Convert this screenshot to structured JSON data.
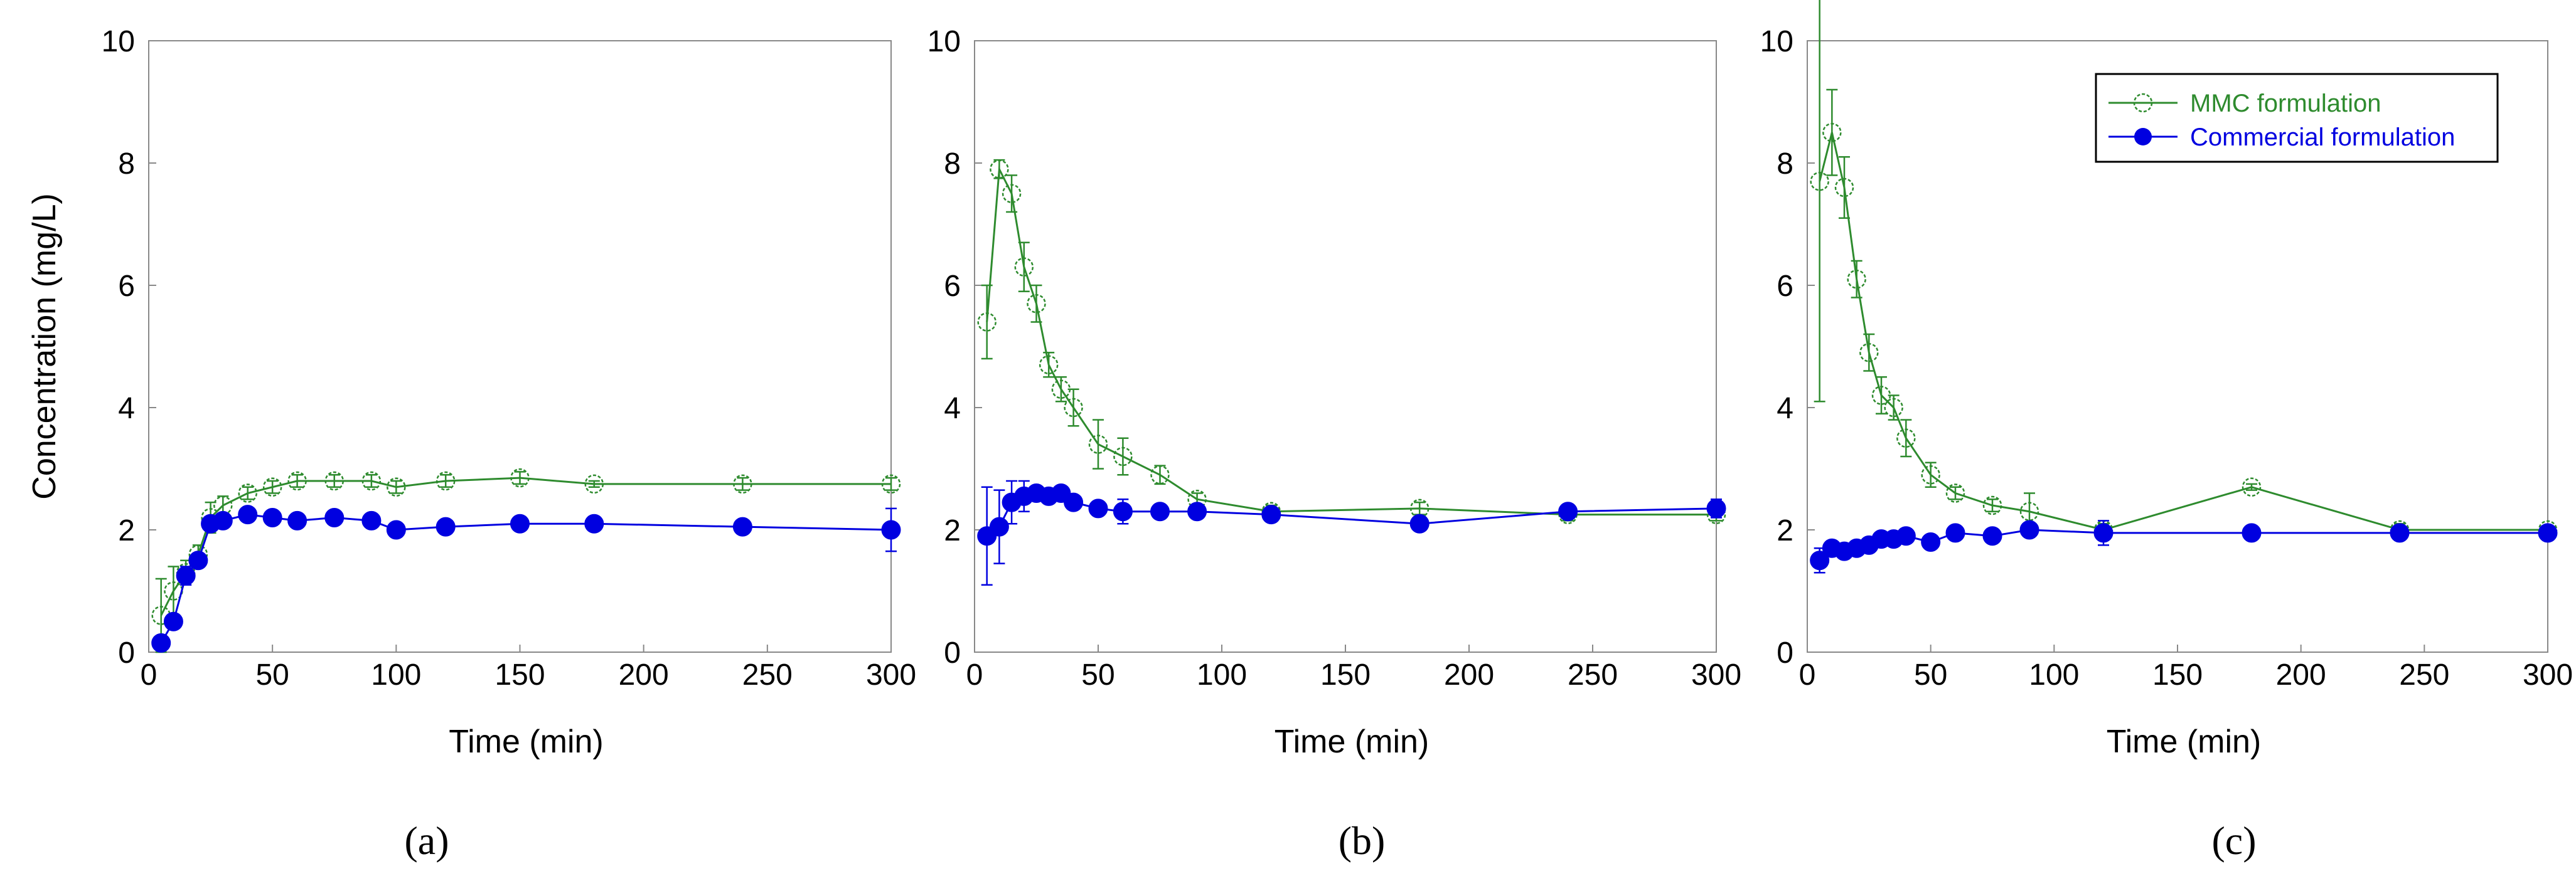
{
  "chart_data": [
    {
      "type": "line",
      "panel_label": "(a)",
      "xlabel": "Time (min)",
      "ylabel": "Concentration (mg/L)",
      "xlim": [
        0,
        300
      ],
      "ylim": [
        0,
        10
      ],
      "xticks": [
        "0",
        "50",
        "100",
        "150",
        "200",
        "250",
        "300"
      ],
      "yticks": [
        "0",
        "2",
        "4",
        "6",
        "8",
        "10"
      ],
      "legend": false,
      "series": [
        {
          "name": "MMC formulation",
          "color": "#2e8b2e",
          "marker": "open-circle",
          "x": [
            5,
            10,
            15,
            20,
            25,
            30,
            40,
            50,
            60,
            75,
            90,
            100,
            120,
            150,
            180,
            240,
            300
          ],
          "y": [
            0.6,
            1.0,
            1.3,
            1.6,
            2.2,
            2.4,
            2.6,
            2.7,
            2.8,
            2.8,
            2.8,
            2.7,
            2.8,
            2.85,
            2.75,
            2.75,
            2.75
          ],
          "err": [
            0.6,
            0.4,
            0.2,
            0.15,
            0.25,
            0.15,
            0.1,
            0.1,
            0.1,
            0.1,
            0.1,
            0.1,
            0.1,
            0.1,
            0.05,
            0.1,
            0.1
          ]
        },
        {
          "name": "Commercial formulation",
          "color": "#0000e0",
          "marker": "filled-circle",
          "x": [
            5,
            10,
            15,
            20,
            25,
            30,
            40,
            50,
            60,
            75,
            90,
            100,
            120,
            150,
            180,
            240,
            300
          ],
          "y": [
            0.15,
            0.5,
            1.25,
            1.5,
            2.1,
            2.15,
            2.25,
            2.2,
            2.15,
            2.2,
            2.15,
            2.0,
            2.05,
            2.1,
            2.1,
            2.05,
            2.0
          ],
          "err": [
            0.1,
            0.1,
            0.15,
            0.1,
            0.1,
            0.1,
            0.1,
            0.1,
            0.1,
            0.1,
            0.1,
            0.1,
            0.1,
            0.05,
            0.05,
            0.1,
            0.35
          ]
        }
      ]
    },
    {
      "type": "line",
      "panel_label": "(b)",
      "xlabel": "Time (min)",
      "ylabel": "",
      "xlim": [
        0,
        300
      ],
      "ylim": [
        0,
        10
      ],
      "xticks": [
        "0",
        "50",
        "100",
        "150",
        "200",
        "250",
        "300"
      ],
      "yticks": [
        "0",
        "2",
        "4",
        "6",
        "8",
        "10"
      ],
      "legend": false,
      "series": [
        {
          "name": "MMC formulation",
          "color": "#2e8b2e",
          "marker": "open-circle",
          "x": [
            5,
            10,
            15,
            20,
            25,
            30,
            35,
            40,
            50,
            60,
            75,
            90,
            120,
            180,
            240,
            300
          ],
          "y": [
            5.4,
            7.9,
            7.5,
            6.3,
            5.7,
            4.7,
            4.3,
            4.0,
            3.4,
            3.2,
            2.9,
            2.5,
            2.3,
            2.35,
            2.25,
            2.25
          ],
          "err": [
            0.6,
            0.15,
            0.3,
            0.4,
            0.3,
            0.2,
            0.2,
            0.3,
            0.4,
            0.3,
            0.15,
            0.1,
            0.1,
            0.1,
            0.1,
            0.1
          ]
        },
        {
          "name": "Commercial formulation",
          "color": "#0000e0",
          "marker": "filled-circle",
          "x": [
            5,
            10,
            15,
            20,
            25,
            30,
            35,
            40,
            50,
            60,
            75,
            90,
            120,
            180,
            240,
            300
          ],
          "y": [
            1.9,
            2.05,
            2.45,
            2.55,
            2.6,
            2.55,
            2.6,
            2.45,
            2.35,
            2.3,
            2.3,
            2.3,
            2.25,
            2.1,
            2.3,
            2.35
          ],
          "err": [
            0.8,
            0.6,
            0.35,
            0.25,
            0.1,
            0.1,
            0.1,
            0.1,
            0.1,
            0.2,
            0.1,
            0.1,
            0.1,
            0.1,
            0.1,
            0.15
          ]
        }
      ]
    },
    {
      "type": "line",
      "panel_label": "(c)",
      "xlabel": "Time (min)",
      "ylabel": "",
      "xlim": [
        0,
        300
      ],
      "ylim": [
        0,
        10
      ],
      "xticks": [
        "0",
        "50",
        "100",
        "150",
        "200",
        "250",
        "300"
      ],
      "yticks": [
        "0",
        "2",
        "4",
        "6",
        "8",
        "10"
      ],
      "legend": true,
      "legend_position": "top-right",
      "series": [
        {
          "name": "MMC formulation",
          "color": "#2e8b2e",
          "marker": "open-circle",
          "x": [
            5,
            10,
            15,
            20,
            25,
            30,
            35,
            40,
            50,
            60,
            75,
            90,
            120,
            180,
            240,
            300
          ],
          "y": [
            7.7,
            8.5,
            7.6,
            6.1,
            4.9,
            4.2,
            4.0,
            3.5,
            2.9,
            2.6,
            2.4,
            2.3,
            2.0,
            2.7,
            2.0,
            2.0
          ],
          "err": [
            3.6,
            0.7,
            0.5,
            0.3,
            0.3,
            0.3,
            0.2,
            0.3,
            0.2,
            0.1,
            0.1,
            0.3,
            0.1,
            0.05,
            0.1,
            0.05
          ]
        },
        {
          "name": "Commercial formulation",
          "color": "#0000e0",
          "marker": "filled-circle",
          "x": [
            5,
            10,
            15,
            20,
            25,
            30,
            35,
            40,
            50,
            60,
            75,
            90,
            120,
            180,
            240,
            300
          ],
          "y": [
            1.5,
            1.7,
            1.65,
            1.7,
            1.75,
            1.85,
            1.85,
            1.9,
            1.8,
            1.95,
            1.9,
            2.0,
            1.95,
            1.95,
            1.95,
            1.95
          ],
          "err": [
            0.2,
            0.1,
            0.1,
            0.1,
            0.1,
            0.1,
            0.1,
            0.1,
            0.1,
            0.1,
            0.1,
            0.1,
            0.2,
            0.05,
            0.1,
            0.05
          ]
        }
      ]
    }
  ]
}
